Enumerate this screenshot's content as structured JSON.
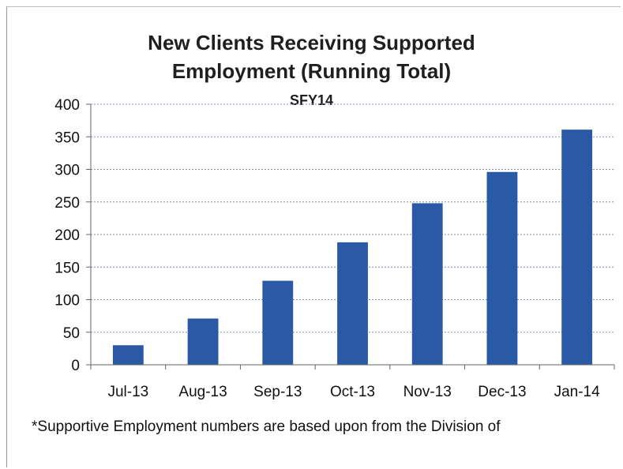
{
  "chart_data": {
    "type": "bar",
    "title_lines": [
      "New Clients Receiving Supported",
      "Employment (Running Total)"
    ],
    "subtitle": "SFY14",
    "categories": [
      "Jul-13",
      "Aug-13",
      "Sep-13",
      "Oct-13",
      "Nov-13",
      "Dec-13",
      "Jan-14"
    ],
    "values": [
      30,
      71,
      129,
      188,
      248,
      296,
      361
    ],
    "ylim": [
      0,
      400
    ],
    "yticks": [
      0,
      50,
      100,
      150,
      200,
      250,
      300,
      350,
      400
    ],
    "ytick_labels": [
      "0",
      "50",
      "100",
      "150",
      "200",
      "250",
      "300",
      "350",
      "400"
    ],
    "grid": true,
    "legend": "none",
    "bar_color": "#2a5aa6"
  },
  "footnote": "*Supportive Employment numbers are based upon from the Division of"
}
